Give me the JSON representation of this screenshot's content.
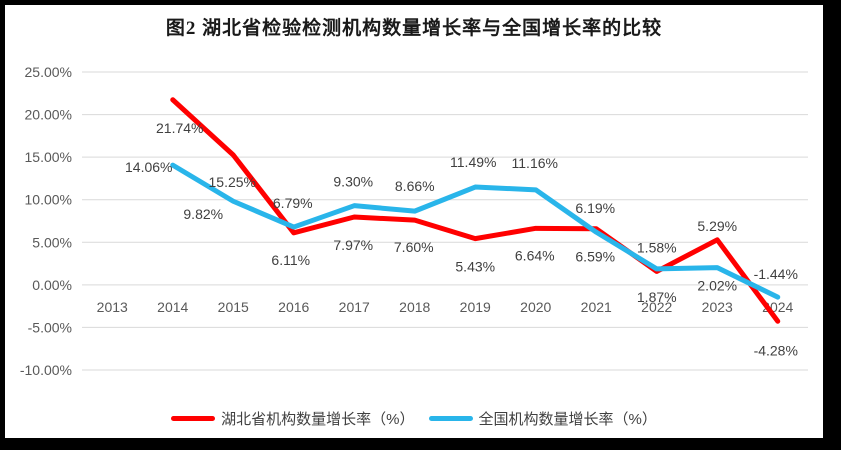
{
  "title": "图2  湖北省检验检测机构数量增长率与全国增长率的比较",
  "colors": {
    "hubei_line": "#FF0000",
    "national_line": "#29B5EA",
    "gridline": "#D9D9D9",
    "axis_text": "#595959",
    "data_label_text": "#404040",
    "frame": "#000000",
    "background": "#FFFFFF"
  },
  "legend": {
    "items": [
      {
        "label": "湖北省机构数量增长率（%）",
        "color": "#FF0000"
      },
      {
        "label": "全国机构数量增长率（%）",
        "color": "#29B5EA"
      }
    ]
  },
  "chart_data": {
    "type": "line",
    "title": "图2  湖北省检验检测机构数量增长率与全国增长率的比较",
    "categories": [
      "2013",
      "2014",
      "2015",
      "2016",
      "2017",
      "2018",
      "2019",
      "2020",
      "2021",
      "2022",
      "2023",
      "2024"
    ],
    "xlabel": "",
    "ylabel": "",
    "ylim": [
      -10,
      25
    ],
    "grid": true,
    "legend_position": "bottom",
    "y_ticks": [
      {
        "value": 25,
        "label": "25.00%"
      },
      {
        "value": 20,
        "label": "20.00%"
      },
      {
        "value": 15,
        "label": "15.00%"
      },
      {
        "value": 10,
        "label": "10.00%"
      },
      {
        "value": 5,
        "label": "5.00%"
      },
      {
        "value": 0,
        "label": "0.00%"
      },
      {
        "value": -5,
        "label": "-5.00%"
      },
      {
        "value": -10,
        "label": "-10.00%"
      }
    ],
    "series": [
      {
        "name": "湖北省机构数量增长率（%）",
        "color": "#FF0000",
        "values": [
          null,
          21.74,
          15.25,
          6.11,
          7.97,
          7.6,
          5.43,
          6.64,
          6.59,
          1.58,
          5.29,
          -4.28
        ],
        "labels": [
          null,
          "21.74%",
          "15.25%",
          "6.11%",
          "7.97%",
          "7.60%",
          "5.43%",
          "6.64%",
          "6.59%",
          "1.58%",
          "5.29%",
          "-4.28%"
        ],
        "label_dx": [
          0,
          7,
          -1,
          -3,
          -1,
          -1,
          0,
          -1,
          -1,
          0,
          0,
          -2
        ],
        "label_dy": [
          0,
          28,
          27,
          27,
          28,
          27,
          28,
          27,
          28,
          -24,
          -14,
          29
        ]
      },
      {
        "name": "全国机构数量增长率（%）",
        "color": "#29B5EA",
        "values": [
          null,
          14.06,
          9.82,
          6.79,
          9.3,
          8.66,
          11.49,
          11.16,
          6.19,
          1.87,
          2.02,
          -1.44
        ],
        "labels": [
          null,
          "14.06%",
          "9.82%",
          "6.79%",
          "9.30%",
          "8.66%",
          "11.49%",
          "11.16%",
          "6.19%",
          "1.87%",
          "2.02%",
          "-1.44%"
        ],
        "label_dx": [
          0,
          -24,
          -30,
          -1,
          -1,
          0,
          -2,
          -1,
          -1,
          0,
          0,
          -2
        ],
        "label_dy": [
          0,
          2,
          13,
          -24,
          -24,
          -25,
          -25,
          -27,
          -24,
          28,
          18,
          -23
        ]
      }
    ]
  }
}
